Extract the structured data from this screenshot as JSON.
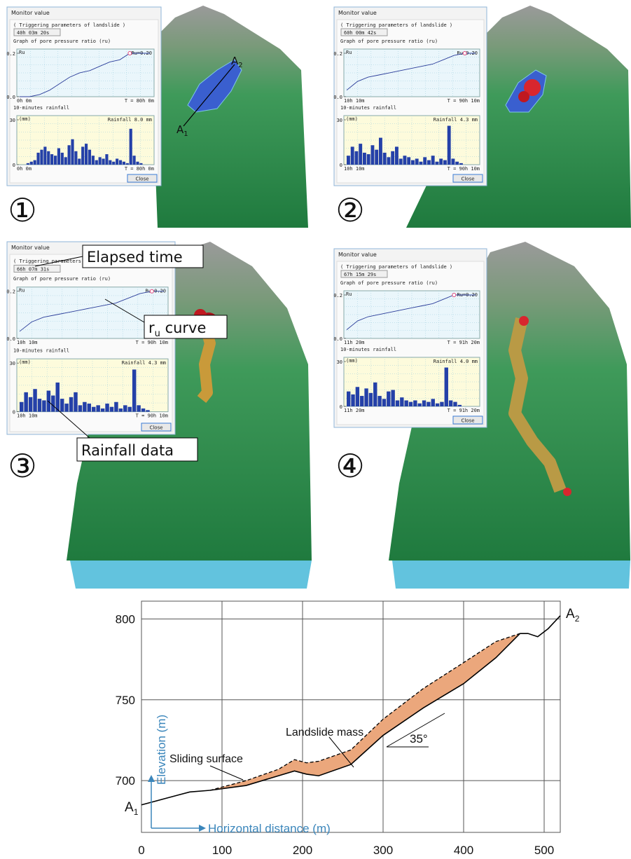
{
  "panels": [
    {
      "number": "①",
      "window": {
        "title": "Monitor value",
        "section": "( Triggering parameters of landslide )",
        "elapsed": "40h 03m 20s",
        "ru_title": "Graph of pore pressure ratio (ru)",
        "ru_axis": "Ru",
        "ru_value": "Ru=0.20",
        "ru_ylim": [
          0,
          0.2
        ],
        "ru_yticks": [
          {
            "value": 0,
            "label": "0.0"
          },
          0.2
        ],
        "ru_start": "0h 0m",
        "ru_end": "T = 80h 0m",
        "ru": [
          0,
          0,
          0.01,
          0.03,
          0.06,
          0.09,
          0.11,
          0.12,
          0.14,
          0.16,
          0.17,
          0.2,
          0.2,
          0.2
        ],
        "rain_title": "10-minutes rainfall",
        "rain_unit": "(mm)",
        "rain_value": "Rainfall 8.0 mm",
        "rain_ylim": [
          0,
          30
        ],
        "rain_yticks": [
          0,
          30
        ],
        "rain_start": "0h 0m",
        "rain_end": "T = 80h 0m",
        "rain": [
          0,
          0,
          1,
          2,
          3,
          8,
          10,
          12,
          9,
          7,
          6,
          11,
          8,
          5,
          13,
          17,
          9,
          4,
          12,
          14,
          10,
          6,
          3,
          5,
          4,
          7,
          3,
          2,
          4,
          3,
          2,
          1,
          24,
          6,
          2,
          1,
          0,
          0
        ],
        "button": "Close"
      }
    },
    {
      "number": "②",
      "window": {
        "title": "Monitor value",
        "section": "( Triggering parameters of landslide )",
        "elapsed": "60h 00m 42s",
        "ru_title": "Graph of pore pressure ratio (ru)",
        "ru_axis": "Ru",
        "ru_value": "Ru=0.20",
        "ru_ylim": [
          0,
          0.2
        ],
        "ru_yticks": [
          {
            "value": 0,
            "label": "0.0"
          },
          0.2
        ],
        "ru_start": "10h 10m",
        "ru_end": "T = 90h 10m",
        "ru": [
          0.03,
          0.07,
          0.09,
          0.1,
          0.11,
          0.12,
          0.13,
          0.14,
          0.15,
          0.17,
          0.19,
          0.2,
          0.2
        ],
        "rain_title": "10-minutes rainfall",
        "rain_unit": "(mm)",
        "rain_value": "Rainfall 4.3 mm",
        "rain_ylim": [
          0,
          30
        ],
        "rain_yticks": [
          0,
          30
        ],
        "rain_start": "10h 10m",
        "rain_end": "T = 90h 10m",
        "rain": [
          6,
          12,
          9,
          14,
          8,
          7,
          13,
          10,
          18,
          8,
          5,
          9,
          12,
          4,
          6,
          5,
          3,
          4,
          2,
          5,
          3,
          6,
          2,
          4,
          3,
          26,
          4,
          2,
          1,
          0,
          0,
          0
        ],
        "button": "Close"
      }
    },
    {
      "number": "③",
      "window": {
        "title": "Monitor value",
        "section": "( Triggering parameters of landslide )",
        "elapsed": "66h 07m 31s",
        "ru_title": "Graph of pore pressure ratio (ru)",
        "ru_axis": "Ru",
        "ru_value": "Ru=0.20",
        "ru_ylim": [
          0,
          0.2
        ],
        "ru_yticks": [
          {
            "value": 0,
            "label": "0.0"
          },
          0.2
        ],
        "ru_start": "10h 10m",
        "ru_end": "T = 90h 10m",
        "ru": [
          0.03,
          0.07,
          0.09,
          0.1,
          0.11,
          0.12,
          0.13,
          0.14,
          0.15,
          0.17,
          0.19,
          0.2,
          0.2
        ],
        "rain_title": "10-minutes rainfall",
        "rain_unit": "(mm)",
        "rain_value": "Rainfall 4.3 mm",
        "rain_ylim": [
          0,
          30
        ],
        "rain_yticks": [
          0,
          30
        ],
        "rain_start": "10h 10m",
        "rain_end": "T = 90h 10m",
        "rain": [
          6,
          12,
          9,
          14,
          8,
          7,
          13,
          10,
          18,
          8,
          5,
          9,
          12,
          4,
          6,
          5,
          3,
          4,
          2,
          5,
          3,
          6,
          2,
          4,
          3,
          26,
          4,
          2,
          1,
          0,
          0,
          0
        ],
        "button": "Close"
      }
    },
    {
      "number": "④",
      "window": {
        "title": "Monitor value",
        "section": "( Triggering parameters of landslide )",
        "elapsed": "67h 15m 29s",
        "ru_title": "Graph of pore pressure ratio (ru)",
        "ru_axis": "Ru",
        "ru_value": "Ru=0.20",
        "ru_ylim": [
          0,
          0.2
        ],
        "ru_yticks": [
          {
            "value": 0,
            "label": "0.0"
          },
          0.2
        ],
        "ru_start": "11h 20m",
        "ru_end": "T = 91h 20m",
        "ru": [
          0.04,
          0.08,
          0.1,
          0.11,
          0.12,
          0.13,
          0.14,
          0.15,
          0.16,
          0.18,
          0.2,
          0.2,
          0.2
        ],
        "rain_title": "10-minutes rainfall",
        "rain_unit": "(mm)",
        "rain_value": "Rainfall 4.0 mm",
        "rain_ylim": [
          0,
          30
        ],
        "rain_yticks": [
          0,
          30
        ],
        "rain_start": "11h 20m",
        "rain_end": "T = 91h 20m",
        "rain": [
          10,
          8,
          13,
          7,
          12,
          9,
          16,
          7,
          5,
          10,
          11,
          4,
          6,
          4,
          3,
          4,
          2,
          4,
          3,
          5,
          2,
          3,
          26,
          4,
          3,
          1,
          0,
          0,
          0
        ],
        "button": "Close"
      }
    }
  ],
  "annotations": {
    "elapsed_time": "Elapsed time",
    "ru_curve": {
      "text": "r",
      "sub": "u",
      "rest": " curve"
    },
    "rainfall_data": "Rainfall data",
    "a1": {
      "text": "A",
      "sub": "1"
    },
    "a2": {
      "text": "A",
      "sub": "2"
    }
  },
  "chart_data": {
    "type": "line",
    "xlabel": "Horizontal distance (m)",
    "ylabel": "Elevation (m)",
    "xlim": [
      0,
      520
    ],
    "ylim": [
      668,
      811
    ],
    "xticks": [
      0,
      100,
      200,
      300,
      400,
      500
    ],
    "yticks": [
      700,
      750,
      800
    ],
    "grid": true,
    "fill_color": "#eba77c",
    "series": [
      {
        "color": "#000000",
        "style": "solid",
        "x": [
          0,
          30,
          60,
          85
        ],
        "y": [
          685,
          689,
          693,
          694
        ]
      },
      {
        "color": "#000000",
        "style": "solid",
        "x": [
          470,
          480,
          492,
          505,
          520
        ],
        "y": [
          791,
          791,
          789,
          794,
          802
        ]
      },
      {
        "color": "#000000",
        "style": "solid",
        "x": [
          85,
          130,
          170,
          190,
          205,
          220,
          260,
          300,
          350,
          400,
          440,
          470
        ],
        "y": [
          694,
          697,
          703,
          706,
          704,
          703,
          710,
          728,
          745,
          760,
          776,
          791
        ]
      },
      {
        "color": "#000000",
        "style": "dashed",
        "x": [
          85,
          130,
          170,
          190,
          205,
          220,
          260,
          300,
          350,
          400,
          440,
          470
        ],
        "y": [
          694,
          700,
          707,
          713,
          711,
          712,
          719,
          738,
          757,
          773,
          786,
          791
        ]
      }
    ],
    "annotations": {
      "mass": "Landslide mass",
      "surface": "Sliding surface",
      "angle": "35°"
    },
    "end_labels": [
      {
        "text": "A",
        "sub": "1"
      },
      {
        "text": "A",
        "sub": "2"
      }
    ]
  }
}
